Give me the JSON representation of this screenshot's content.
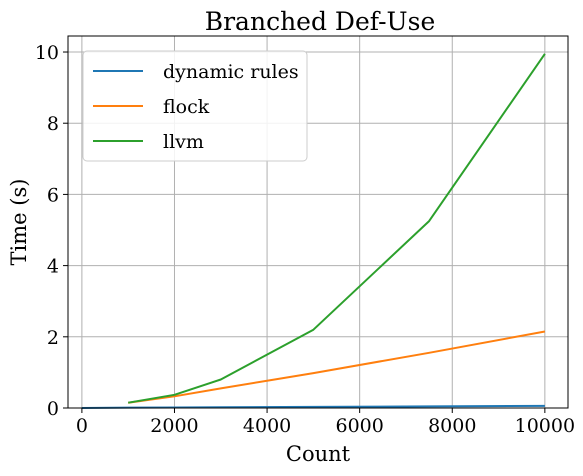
{
  "chart_data": {
    "type": "line",
    "title": "Branched Def-Use",
    "xlabel": "Count",
    "ylabel": "Time (s)",
    "xlim": [
      -300,
      10500
    ],
    "ylim": [
      0,
      10.45
    ],
    "xticks": [
      0,
      2000,
      4000,
      6000,
      8000,
      10000
    ],
    "yticks": [
      0,
      2,
      4,
      6,
      8,
      10
    ],
    "grid": true,
    "legend_position": "top-left",
    "series": [
      {
        "name": "dynamic rules",
        "color": "#1f77b4",
        "x": [
          0,
          1000,
          2000,
          3000,
          5000,
          7500,
          10000
        ],
        "y": [
          0.0,
          0.01,
          0.015,
          0.02,
          0.03,
          0.045,
          0.06
        ]
      },
      {
        "name": "flock",
        "color": "#ff7f0e",
        "x": [
          1000,
          2000,
          3000,
          5000,
          7500,
          10000
        ],
        "y": [
          0.15,
          0.33,
          0.55,
          0.98,
          1.55,
          2.15
        ]
      },
      {
        "name": "llvm",
        "color": "#2ca02c",
        "x": [
          1000,
          2000,
          3000,
          5000,
          7500,
          10000
        ],
        "y": [
          0.15,
          0.37,
          0.8,
          2.2,
          5.25,
          9.95
        ]
      }
    ]
  }
}
